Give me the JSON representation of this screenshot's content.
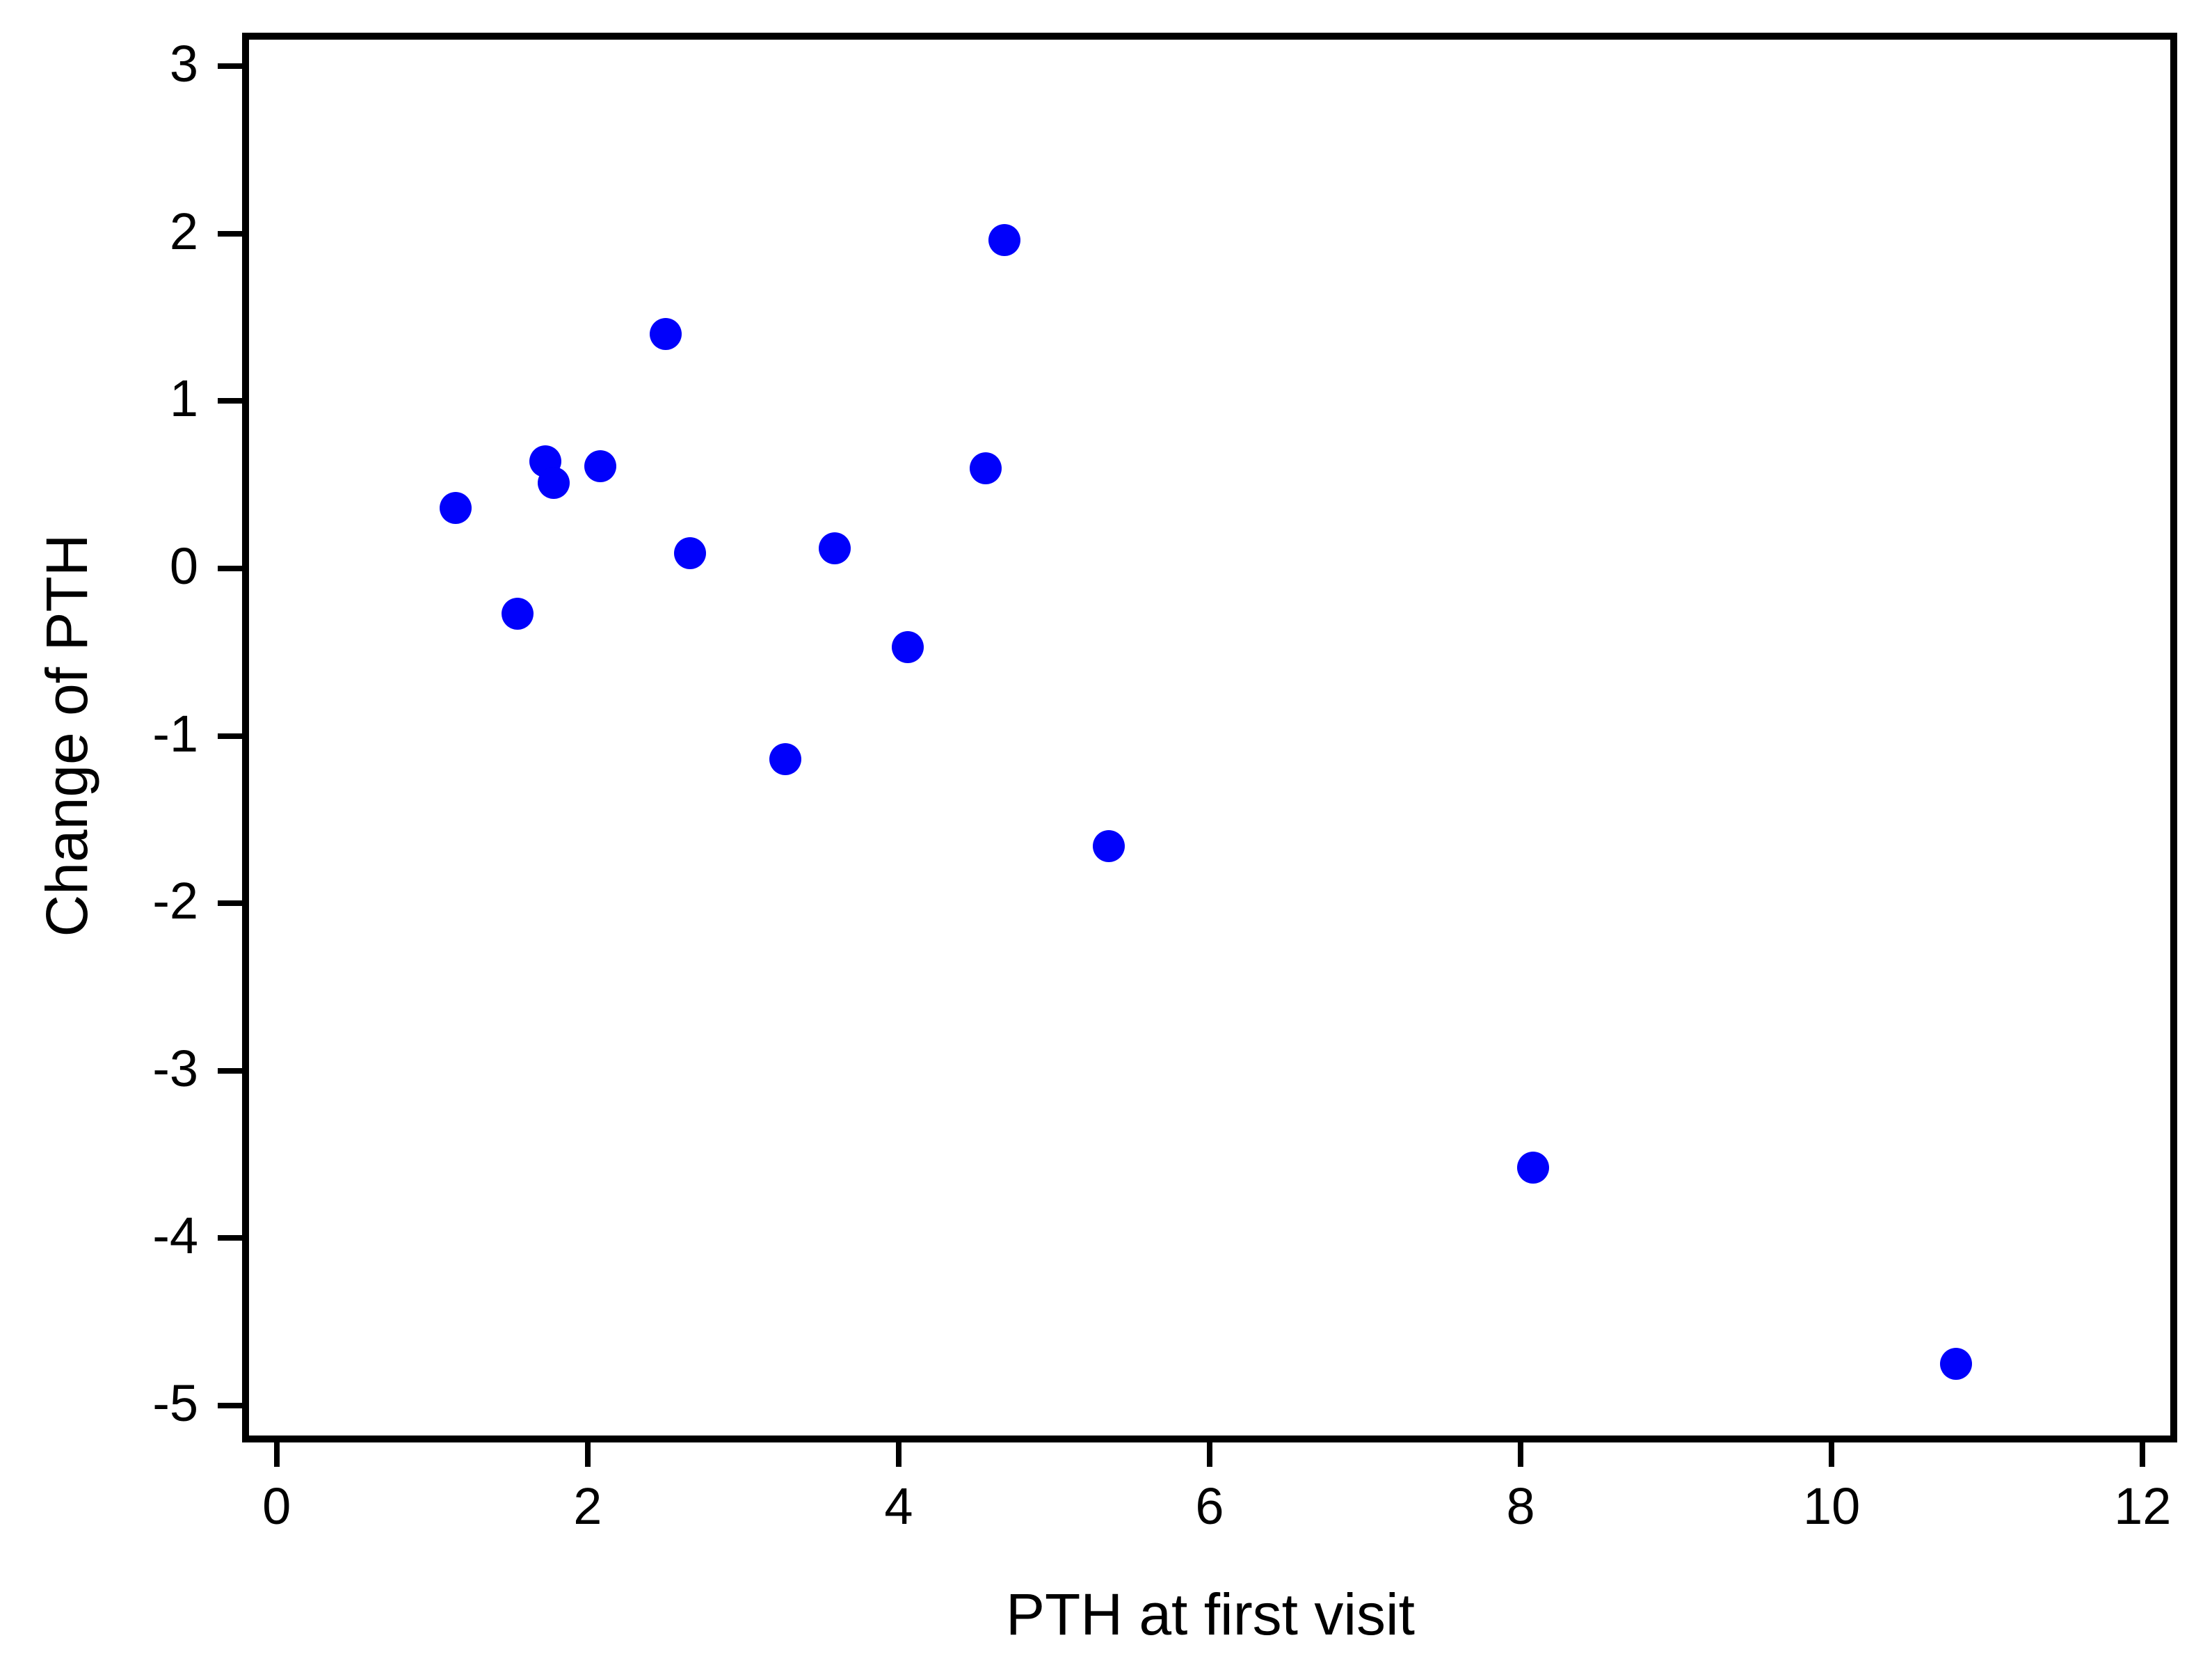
{
  "figure": {
    "background": "#ffffff"
  },
  "chart_data": {
    "type": "scatter",
    "title": "",
    "xlabel": "PTH at first visit",
    "ylabel": "Change of PTH",
    "x": [
      1.15,
      1.55,
      1.73,
      1.78,
      2.08,
      2.5,
      2.66,
      3.27,
      3.59,
      4.06,
      4.56,
      4.68,
      5.35,
      8.08,
      10.8
    ],
    "y": [
      0.36,
      -0.27,
      0.64,
      0.51,
      0.61,
      1.4,
      0.09,
      -1.14,
      0.12,
      -0.47,
      0.6,
      1.96,
      -1.66,
      -3.58,
      -4.75
    ],
    "x_ticks": [
      0,
      2,
      4,
      6,
      8,
      10,
      12
    ],
    "x_tick_labels": [
      "0",
      "2",
      "4",
      "6",
      "8",
      "10",
      "12"
    ],
    "y_ticks": [
      3,
      2,
      1,
      0,
      -1,
      -2,
      -3,
      -4,
      -5
    ],
    "y_tick_labels": [
      "3",
      "2",
      "1",
      "0",
      "-1",
      "-2",
      "-3",
      "-4",
      "-5"
    ],
    "xlim": [
      -0.2,
      12.2
    ],
    "ylim": [
      -5.18,
      3.18
    ],
    "grid": true,
    "legend_position": "none",
    "marker": "filled-circle",
    "marker_color": "#0101fb",
    "grid_color": "#e3e3e3",
    "frame_color": "#000000",
    "tick_label_color": "#000000"
  }
}
